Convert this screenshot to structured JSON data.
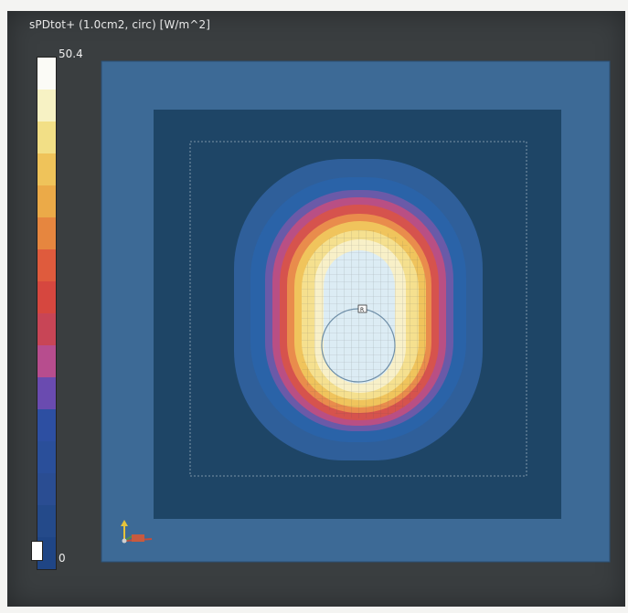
{
  "title": "sPDtot+ (1.0cm2, circ) [W/m^2]",
  "legend": {
    "max_label": "50.4",
    "min_label": "0",
    "colors": [
      "#fbfbf6",
      "#f7f2c4",
      "#f2df86",
      "#efc35a",
      "#ebaa48",
      "#e6863f",
      "#df5b3d",
      "#d6473f",
      "#c84556",
      "#b74d8e",
      "#6a4bb0",
      "#2d4fa2",
      "#2a4f9a",
      "#2a4d92",
      "#244a8a",
      "#1f4585"
    ]
  },
  "colors": {
    "background": "#3a3e40",
    "outer_square": "#3d6a96",
    "inner_square": "#1e4566",
    "hotspot_core": "#dcecf4"
  },
  "marker": {
    "label": "R"
  }
}
